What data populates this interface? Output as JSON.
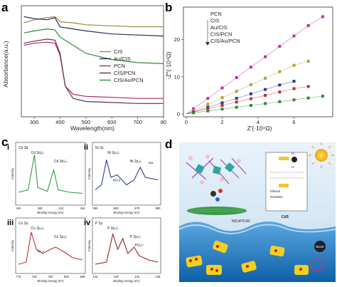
{
  "panels": {
    "a": {
      "label": "a",
      "xlabel": "Wavelength(nm)",
      "ylabel": "Absorbance(a.u.)",
      "xticks": [
        "300",
        "400",
        "500",
        "600",
        "700",
        "80"
      ],
      "legend": [
        "CIS",
        "Au/CIS",
        "PCN",
        "CIS/PCN",
        "CIS/Au/PCN"
      ]
    },
    "b": {
      "label": "b",
      "xlabel": "Z'(·10⁴Ω)",
      "ylabel": "-Z''(·10⁴Ω)",
      "xticks": [
        "0",
        "2",
        "4",
        "6"
      ],
      "yticks": [
        "0",
        "10",
        "20"
      ],
      "legend": [
        "PCN",
        "CIS",
        "Au/CIS",
        "CIS/PCN",
        "CIS/Au/PCN"
      ]
    },
    "c": {
      "label": "c",
      "sub": [
        {
          "label": "i",
          "title": "Cd 3d",
          "peak1": "Cd 3d₅/₂",
          "peak2": "Cd 3d₃/₂",
          "ticks": [
            "404",
            "408",
            "412",
            "416"
          ],
          "xlabel": "Binding energy (eV)",
          "ylabel": "Intensity"
        },
        {
          "label": "ii",
          "title": "Ni 2p",
          "peak1": "Ni 2p₃/₂",
          "peak2": "Ni 2p₁/₂",
          "val": "856.6",
          "sat": "Sat.",
          "ticks": [
            "850",
            "860",
            "870",
            "880"
          ],
          "xlabel": "Binding energy (eV)",
          "ylabel": "Intensity"
        },
        {
          "label": "iii",
          "title": "Co 2p",
          "peak1": "Co 2p₃/₂",
          "peak2": "Co 2p₁/₂",
          "val": "781.4",
          "ticks": [
            "776",
            "784",
            "792",
            "800",
            "808"
          ],
          "xlabel": "Binding energy (eV)",
          "ylabel": "Intensity"
        },
        {
          "label": "iv",
          "title": "P 2p",
          "peak1": "P 2p₃/₂",
          "peak2": "P 2p₁/₂",
          "peak3": "PO₄³⁻",
          "ticks": [
            "126",
            "130",
            "134",
            "138"
          ],
          "xlabel": "Binding energy (eV)",
          "ylabel": "Intensity"
        }
      ]
    },
    "d": {
      "label": "d",
      "material": "NiCoP/CdS",
      "cds": "CdS",
      "nicop": "NiCoP",
      "h2": "H₂",
      "hplus": "H⁺",
      "oxidation": "Oxidation",
      "reduction": "Reduction",
      "ethanol": "Ethanol"
    }
  },
  "chart_data": [
    {
      "type": "line",
      "panel": "a",
      "xlabel": "Wavelength(nm)",
      "ylabel": "Absorbance(a.u.)",
      "xlim": [
        250,
        800
      ],
      "series": [
        {
          "name": "CIS",
          "color": "#9c8a3a",
          "x": [
            260,
            300,
            350,
            380,
            400,
            450,
            500,
            600,
            700,
            800
          ],
          "values": [
            0.92,
            0.95,
            0.97,
            0.98,
            0.93,
            0.92,
            0.9,
            0.89,
            0.88,
            0.88
          ]
        },
        {
          "name": "Au/CIS",
          "color": "#2a2a5e",
          "x": [
            260,
            300,
            350,
            380,
            400,
            450,
            500,
            600,
            700,
            800
          ],
          "values": [
            0.98,
            0.96,
            0.95,
            0.97,
            0.88,
            0.86,
            0.84,
            0.81,
            0.8,
            0.79
          ]
        },
        {
          "name": "PCN",
          "color": "#b0296a",
          "x": [
            260,
            300,
            350,
            380,
            400,
            420,
            450,
            500,
            600,
            700,
            800
          ],
          "values": [
            0.7,
            0.72,
            0.73,
            0.72,
            0.6,
            0.3,
            0.22,
            0.2,
            0.19,
            0.18,
            0.18
          ]
        },
        {
          "name": "CIS/PCN",
          "color": "#6a2d4a",
          "x": [
            260,
            300,
            350,
            380,
            400,
            420,
            450,
            500,
            600,
            700,
            800
          ],
          "values": [
            0.72,
            0.74,
            0.76,
            0.75,
            0.62,
            0.3,
            0.18,
            0.15,
            0.14,
            0.13,
            0.13
          ]
        },
        {
          "name": "CIS/Au/PCN",
          "color": "#2e8b3a",
          "x": [
            260,
            300,
            350,
            380,
            400,
            450,
            500,
            600,
            700,
            800
          ],
          "values": [
            0.82,
            0.84,
            0.86,
            0.85,
            0.78,
            0.7,
            0.62,
            0.56,
            0.53,
            0.52
          ]
        }
      ]
    },
    {
      "type": "scatter",
      "panel": "b",
      "xlabel": "Z'(·10⁴Ω)",
      "ylabel": "-Z''(·10⁴Ω)",
      "xlim": [
        0,
        8
      ],
      "ylim": [
        0,
        28
      ],
      "series": [
        {
          "name": "PCN",
          "color": "#c0309a",
          "x": [
            0.4,
            1.2,
            2.0,
            2.8,
            3.6,
            4.4,
            5.2,
            6.0,
            6.8,
            7.6
          ],
          "values": [
            1.4,
            4.2,
            7.0,
            9.8,
            12.6,
            15.4,
            18.2,
            21.0,
            23.8,
            26.2
          ]
        },
        {
          "name": "CIS",
          "color": "#b3a03a",
          "x": [
            0.4,
            1.2,
            2.0,
            2.8,
            3.6,
            4.4,
            5.2,
            6.0,
            6.8
          ],
          "values": [
            0.9,
            2.6,
            4.4,
            6.1,
            7.9,
            9.6,
            11.4,
            13.1,
            14.2
          ]
        },
        {
          "name": "Au/CIS",
          "color": "#2b3a8a",
          "x": [
            0.4,
            1.2,
            2.0,
            2.8,
            3.6,
            4.4,
            5.2,
            6.0
          ],
          "values": [
            0.6,
            1.8,
            3.0,
            4.2,
            5.4,
            6.6,
            7.8,
            8.8
          ]
        },
        {
          "name": "CIS/PCN",
          "color": "#c03030",
          "x": [
            0.4,
            1.2,
            2.0,
            2.8,
            3.6,
            4.4,
            5.2,
            6.0,
            6.8
          ],
          "values": [
            0.5,
            1.4,
            2.3,
            3.2,
            4.1,
            5.0,
            5.9,
            6.8,
            7.4
          ]
        },
        {
          "name": "CIS/Au/PCN",
          "color": "#2e8b3a",
          "x": [
            0.4,
            1.2,
            2.0,
            2.8,
            3.6,
            4.4,
            5.2,
            6.0,
            6.8,
            7.6
          ],
          "values": [
            0.3,
            0.8,
            1.3,
            1.8,
            2.3,
            2.8,
            3.3,
            3.8,
            4.3,
            4.8
          ]
        }
      ]
    }
  ]
}
